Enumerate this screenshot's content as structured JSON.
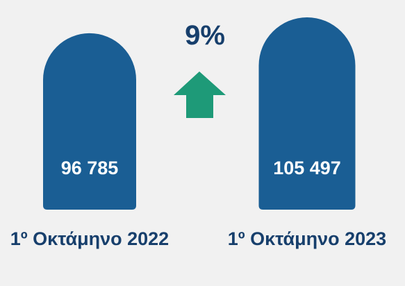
{
  "chart_data": {
    "type": "bar",
    "categories": [
      "1º Οκτάμηνο 2022",
      "1º Οκτάμηνο 2023"
    ],
    "values": [
      96785,
      105497
    ],
    "value_labels": [
      "96 785",
      "105 497"
    ],
    "color": "#1a5e94",
    "annotation": "9%"
  }
}
